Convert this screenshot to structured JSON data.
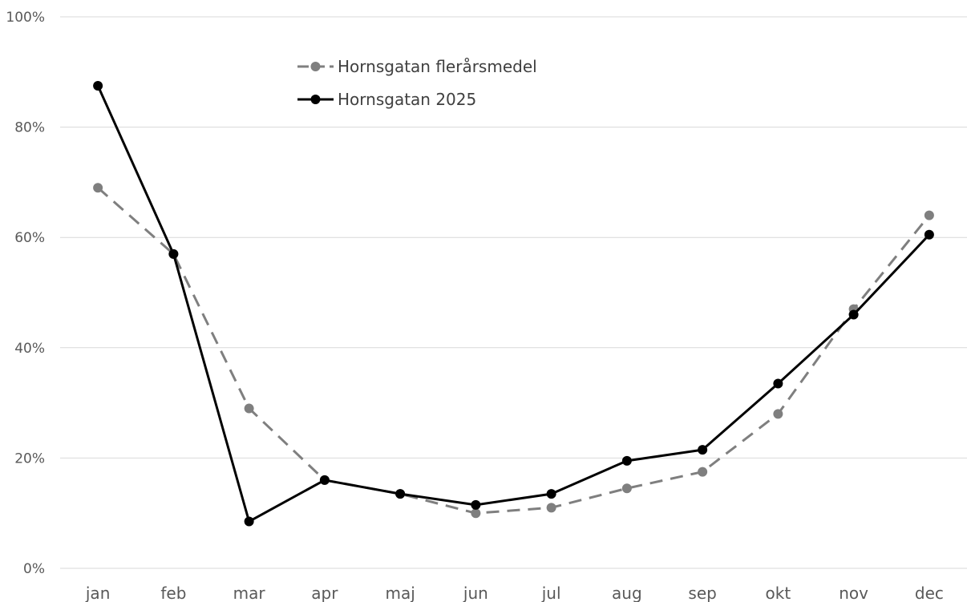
{
  "chart_data": {
    "type": "line",
    "categories": [
      "jan",
      "feb",
      "mar",
      "apr",
      "maj",
      "jun",
      "jul",
      "aug",
      "sep",
      "okt",
      "nov",
      "dec"
    ],
    "y_ticks": [
      "0%",
      "20%",
      "40%",
      "60%",
      "80%",
      "100%"
    ],
    "ylim": [
      0,
      100
    ],
    "grid": true,
    "legend_position": "top-center",
    "series": [
      {
        "name": "Hornsgatan flerårsmedel",
        "color": "#7f7f7f",
        "dashed": true,
        "values": [
          69,
          57,
          29,
          16,
          13.5,
          10,
          11,
          14.5,
          17.5,
          28,
          47,
          64
        ]
      },
      {
        "name": "Hornsgatan 2025",
        "color": "#000000",
        "dashed": false,
        "values": [
          87.5,
          57,
          8.5,
          16,
          13.5,
          11.5,
          13.5,
          19.5,
          21.5,
          33.5,
          46,
          60.5
        ]
      }
    ]
  }
}
